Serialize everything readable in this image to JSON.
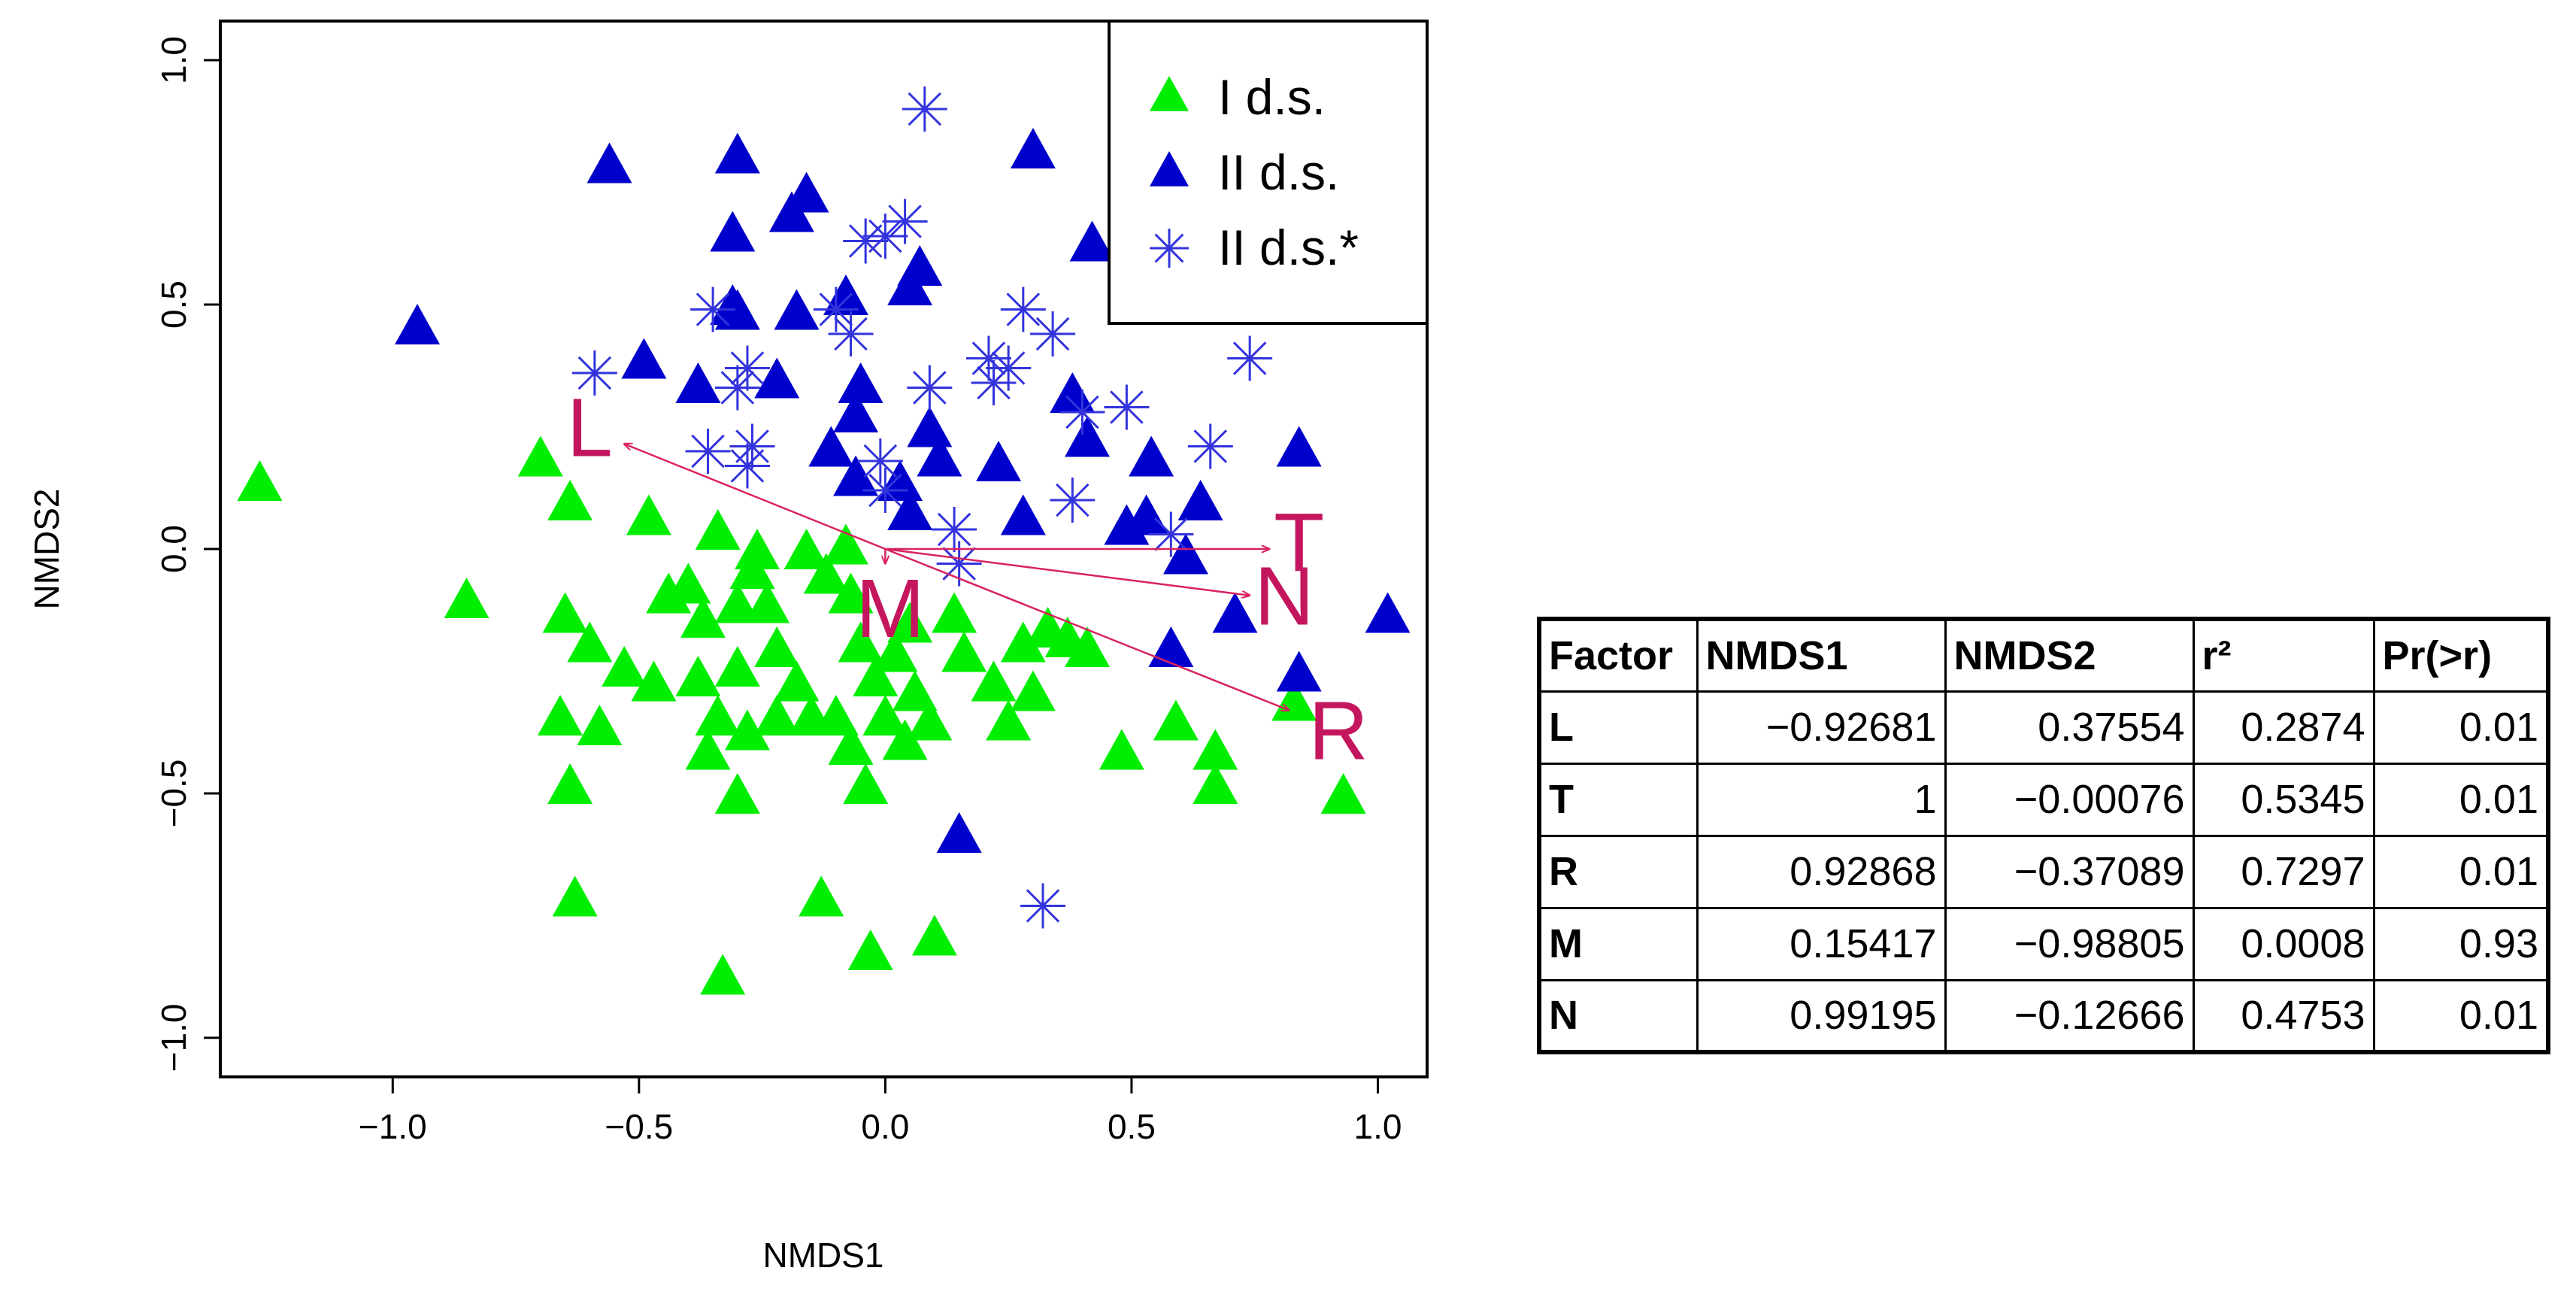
{
  "chart_data": {
    "type": "scatter",
    "xlabel": "NMDS1",
    "ylabel": "NMDS2",
    "xlim": [
      -1.35,
      1.1
    ],
    "ylim": [
      -1.08,
      1.08
    ],
    "xticks": [
      "−1.0",
      "−0.5",
      "0.0",
      "0.5",
      "1.0"
    ],
    "xtick_values": [
      -1.0,
      -0.5,
      0.0,
      0.5,
      1.0
    ],
    "yticks": [
      "−1.0",
      "−0.5",
      "0.0",
      "0.5",
      "1.0"
    ],
    "ytick_values": [
      -1.0,
      -0.5,
      0.0,
      0.5,
      1.0
    ],
    "legend_position": "top-right",
    "legend": [
      {
        "label": "I d.s.",
        "marker": "triangle",
        "color": "#00ee00"
      },
      {
        "label": "II d.s.",
        "marker": "triangle",
        "color": "#0000cd"
      },
      {
        "label": "II d.s.*",
        "marker": "asterisk",
        "color": "#3333dd"
      }
    ],
    "series": [
      {
        "name": "I d.s.",
        "marker": "triangle",
        "color": "#00ee00",
        "points": [
          [
            -1.27,
            0.13
          ],
          [
            -0.7,
            0.18
          ],
          [
            -0.64,
            0.09
          ],
          [
            -0.85,
            -0.11
          ],
          [
            -0.65,
            -0.14
          ],
          [
            -0.48,
            0.06
          ],
          [
            -0.44,
            -0.1
          ],
          [
            -0.34,
            0.03
          ],
          [
            -0.4,
            -0.08
          ],
          [
            -0.6,
            -0.2
          ],
          [
            -0.66,
            -0.35
          ],
          [
            -0.58,
            -0.37
          ],
          [
            -0.64,
            -0.49
          ],
          [
            -0.53,
            -0.25
          ],
          [
            -0.47,
            -0.28
          ],
          [
            -0.38,
            -0.27
          ],
          [
            -0.34,
            -0.35
          ],
          [
            -0.36,
            -0.42
          ],
          [
            -0.3,
            -0.25
          ],
          [
            -0.28,
            -0.38
          ],
          [
            -0.3,
            -0.51
          ],
          [
            -0.37,
            -0.15
          ],
          [
            -0.3,
            -0.12
          ],
          [
            -0.27,
            -0.05
          ],
          [
            -0.24,
            -0.12
          ],
          [
            -0.22,
            -0.21
          ],
          [
            -0.18,
            -0.28
          ],
          [
            -0.15,
            -0.35
          ],
          [
            -0.22,
            -0.35
          ],
          [
            -0.12,
            -0.06
          ],
          [
            -0.16,
            -0.01
          ],
          [
            -0.07,
            -0.1
          ],
          [
            -0.05,
            -0.2
          ],
          [
            -0.1,
            -0.35
          ],
          [
            -0.07,
            -0.41
          ],
          [
            -0.04,
            -0.49
          ],
          [
            -0.02,
            -0.27
          ],
          [
            0.0,
            -0.35
          ],
          [
            0.02,
            -0.22
          ],
          [
            0.04,
            -0.4
          ],
          [
            0.06,
            -0.3
          ],
          [
            0.09,
            -0.36
          ],
          [
            0.05,
            -0.16
          ],
          [
            0.14,
            -0.14
          ],
          [
            0.16,
            -0.22
          ],
          [
            0.22,
            -0.28
          ],
          [
            0.25,
            -0.36
          ],
          [
            0.28,
            -0.2
          ],
          [
            0.3,
            -0.3
          ],
          [
            0.33,
            -0.17
          ],
          [
            0.37,
            -0.19
          ],
          [
            0.41,
            -0.21
          ],
          [
            0.48,
            -0.42
          ],
          [
            0.59,
            -0.36
          ],
          [
            0.67,
            -0.42
          ],
          [
            0.67,
            -0.49
          ],
          [
            0.93,
            -0.51
          ],
          [
            -0.63,
            -0.72
          ],
          [
            -0.33,
            -0.88
          ],
          [
            -0.13,
            -0.72
          ],
          [
            -0.03,
            -0.83
          ],
          [
            0.1,
            -0.8
          ],
          [
            0.83,
            -0.32
          ],
          [
            -0.08,
            0.0
          ],
          [
            -0.26,
            -0.01
          ]
        ]
      },
      {
        "name": "II d.s.",
        "marker": "triangle",
        "color": "#0000cd",
        "points": [
          [
            -0.95,
            0.45
          ],
          [
            -0.56,
            0.78
          ],
          [
            -0.3,
            0.8
          ],
          [
            0.3,
            0.81
          ],
          [
            -0.31,
            0.64
          ],
          [
            -0.19,
            0.68
          ],
          [
            -0.16,
            0.72
          ],
          [
            0.42,
            0.62
          ],
          [
            0.07,
            0.57
          ],
          [
            -0.49,
            0.38
          ],
          [
            -0.38,
            0.33
          ],
          [
            -0.31,
            0.49
          ],
          [
            -0.3,
            0.48
          ],
          [
            -0.18,
            0.48
          ],
          [
            -0.08,
            0.51
          ],
          [
            0.05,
            0.53
          ],
          [
            -0.22,
            0.34
          ],
          [
            -0.06,
            0.27
          ],
          [
            -0.05,
            0.33
          ],
          [
            -0.11,
            0.2
          ],
          [
            -0.06,
            0.14
          ],
          [
            0.03,
            0.13
          ],
          [
            0.09,
            0.24
          ],
          [
            0.11,
            0.18
          ],
          [
            0.23,
            0.17
          ],
          [
            0.38,
            0.31
          ],
          [
            0.41,
            0.22
          ],
          [
            0.54,
            0.18
          ],
          [
            0.64,
            0.09
          ],
          [
            0.49,
            0.04
          ],
          [
            0.28,
            0.06
          ],
          [
            0.05,
            0.07
          ],
          [
            0.53,
            0.06
          ],
          [
            0.61,
            -0.02
          ],
          [
            0.71,
            -0.14
          ],
          [
            0.84,
            0.2
          ],
          [
            1.02,
            -0.14
          ],
          [
            0.58,
            -0.21
          ],
          [
            0.84,
            -0.26
          ],
          [
            0.15,
            -0.59
          ]
        ]
      },
      {
        "name": "II d.s.*",
        "marker": "asterisk",
        "color": "#3333dd",
        "points": [
          [
            0.08,
            0.9
          ],
          [
            -0.59,
            0.36
          ],
          [
            -0.35,
            0.49
          ],
          [
            -0.1,
            0.49
          ],
          [
            -0.07,
            0.44
          ],
          [
            -0.04,
            0.63
          ],
          [
            0.0,
            0.64
          ],
          [
            0.04,
            0.67
          ],
          [
            -0.28,
            0.37
          ],
          [
            -0.3,
            0.33
          ],
          [
            -0.36,
            0.2
          ],
          [
            -0.27,
            0.21
          ],
          [
            -0.28,
            0.17
          ],
          [
            -0.01,
            0.18
          ],
          [
            0.0,
            0.12
          ],
          [
            0.09,
            0.33
          ],
          [
            0.21,
            0.39
          ],
          [
            0.22,
            0.34
          ],
          [
            0.25,
            0.37
          ],
          [
            0.28,
            0.49
          ],
          [
            0.34,
            0.44
          ],
          [
            0.4,
            0.28
          ],
          [
            0.49,
            0.29
          ],
          [
            0.66,
            0.21
          ],
          [
            0.74,
            0.39
          ],
          [
            0.38,
            0.1
          ],
          [
            0.14,
            0.04
          ],
          [
            0.15,
            -0.03
          ],
          [
            0.58,
            0.03
          ],
          [
            0.32,
            -0.73
          ]
        ]
      }
    ],
    "vectors": [
      {
        "label": "L",
        "x": -0.53,
        "y": 0.215,
        "label_x": -0.6,
        "label_y": 0.235
      },
      {
        "label": "T",
        "x": 0.78,
        "y": 0.0,
        "label_x": 0.84,
        "label_y": 0.0
      },
      {
        "label": "R",
        "x": 0.82,
        "y": -0.33,
        "label_x": 0.92,
        "label_y": -0.385
      },
      {
        "label": "M",
        "x": 0.0,
        "y": -0.03,
        "label_x": 0.01,
        "label_y": -0.135
      },
      {
        "label": "N",
        "x": 0.74,
        "y": -0.095,
        "label_x": 0.81,
        "label_y": -0.11
      }
    ]
  },
  "table": {
    "headers": [
      "Factor",
      "NMDS1",
      "NMDS2",
      "r²",
      "Pr(>r)"
    ],
    "rows": [
      [
        "L",
        "−0.92681",
        "0.37554",
        "0.2874",
        "0.01"
      ],
      [
        "T",
        "1",
        "−0.00076",
        "0.5345",
        "0.01"
      ],
      [
        "R",
        "0.92868",
        "−0.37089",
        "0.7297",
        "0.01"
      ],
      [
        "M",
        "0.15417",
        "−0.98805",
        "0.0008",
        "0.93"
      ],
      [
        "N",
        "0.99195",
        "−0.12666",
        "0.4753",
        "0.01"
      ]
    ]
  }
}
